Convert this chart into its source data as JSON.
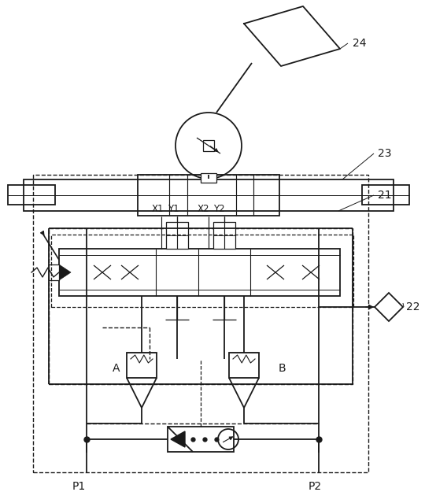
{
  "bg": "#ffffff",
  "lc": "#1a1a1a",
  "lw": 1.3,
  "figsize": [
    5.4,
    6.39
  ],
  "dpi": 100,
  "xlim": [
    0,
    540
  ],
  "ylim": [
    0,
    639
  ]
}
